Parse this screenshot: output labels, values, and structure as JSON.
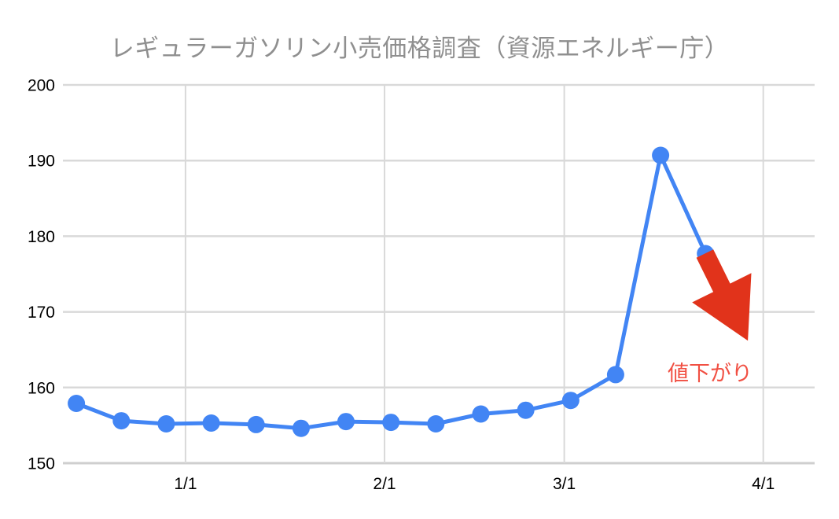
{
  "chart_data": {
    "type": "line",
    "title": "レギュラーガソリン小売価格調査（資源エネルギー庁）",
    "xlabel": "",
    "ylabel": "",
    "ylim": [
      150,
      200
    ],
    "xlim_days": [
      -19.1,
      98.0
    ],
    "grid": true,
    "legend_position": "none",
    "y_ticks": [
      150,
      160,
      170,
      180,
      190,
      200
    ],
    "x_ticks": [
      {
        "day": 0,
        "label": "1/1"
      },
      {
        "day": 31,
        "label": "2/1"
      },
      {
        "day": 59,
        "label": "3/1"
      },
      {
        "day": 90,
        "label": "4/1"
      }
    ],
    "series": [
      {
        "name": "regular-gasoline-price",
        "color": "#4285f4",
        "x_days": [
          -17,
          -10,
          -3,
          4,
          11,
          18,
          25,
          32,
          39,
          46,
          53,
          60,
          67,
          74,
          81
        ],
        "values": [
          157.9,
          155.6,
          155.2,
          155.3,
          155.1,
          154.6,
          155.5,
          155.4,
          155.2,
          156.5,
          157.0,
          158.3,
          161.7,
          190.7,
          177.7
        ]
      }
    ],
    "annotation": {
      "text": "値下がり",
      "text_color": "#f15043",
      "arrow": {
        "color": "#e1331b",
        "from_day": 80.9,
        "from_value": 177.7,
        "to_day": 87.6,
        "to_value": 166.2,
        "shaft_half_width": 12,
        "head_length": 75,
        "head_half_width": 42
      }
    }
  },
  "colors": {
    "title": "#8f8f8f",
    "grid": "#d9d9d9",
    "baseline": "#cfcfcf",
    "axis_label": "#000000",
    "background": "#ffffff"
  }
}
